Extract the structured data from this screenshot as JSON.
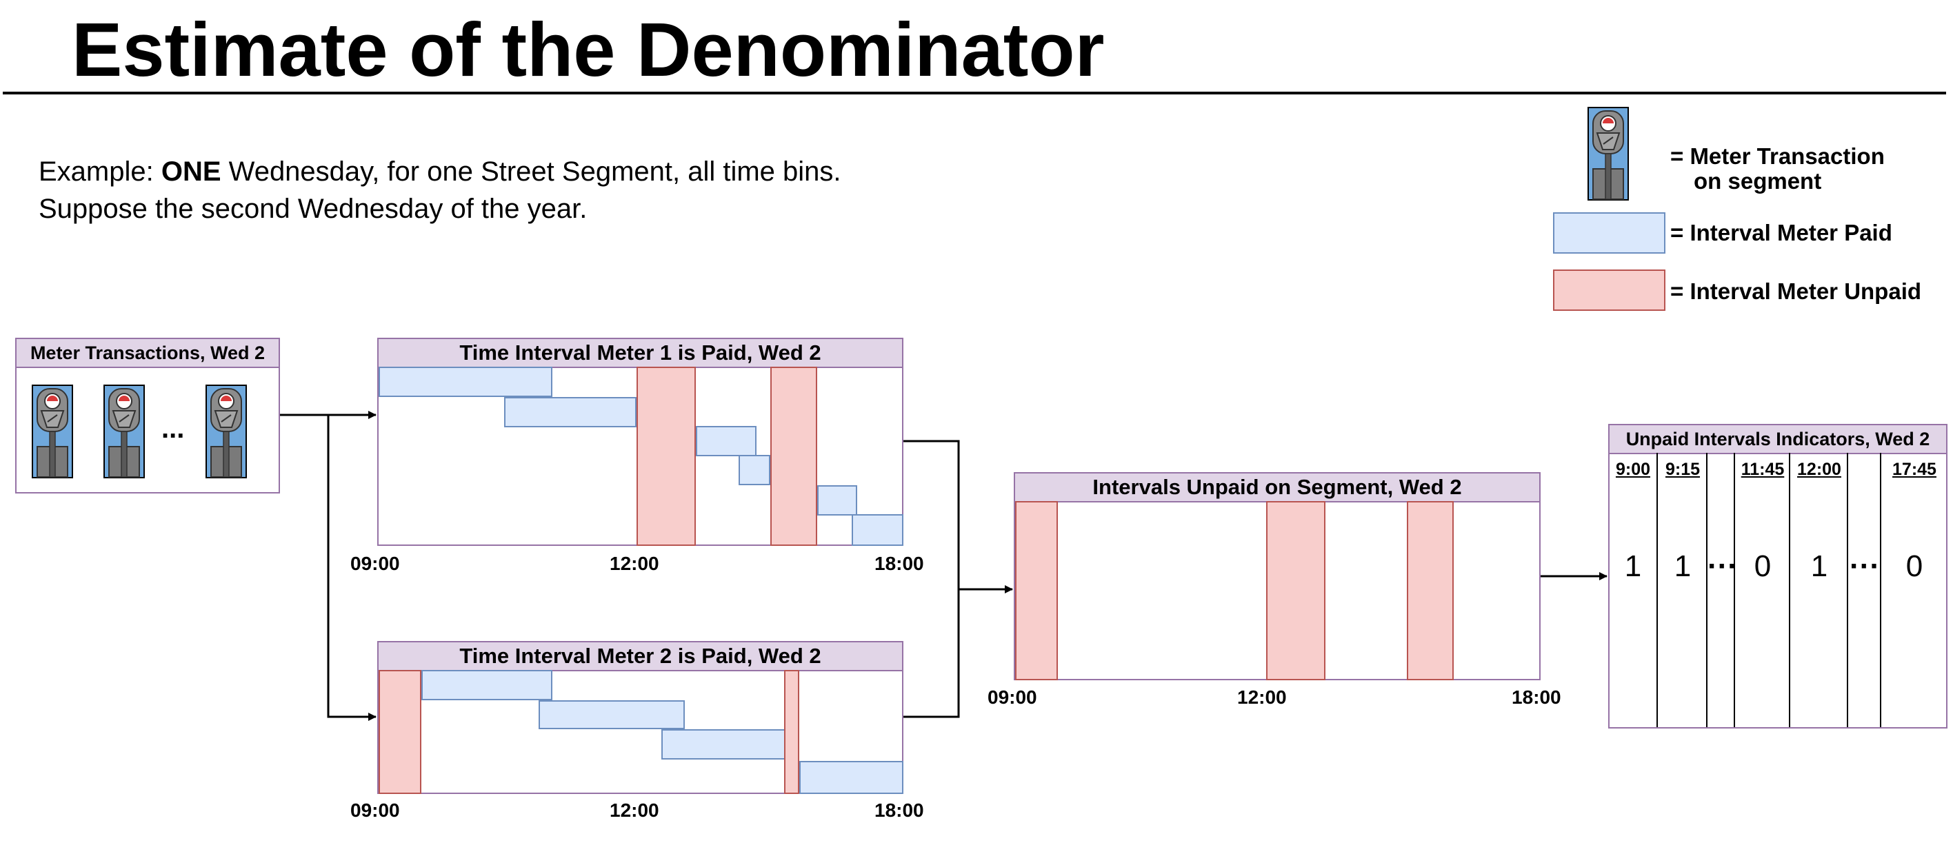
{
  "title": "Estimate of the Denominator",
  "example": {
    "prefix": "Example: ",
    "emphasis": "ONE",
    "line1_rest": " Wednesday, for one Street Segment, all time bins.",
    "line2": "Suppose the second Wednesday of the year."
  },
  "legend": {
    "meter_transaction_line1": "= Meter Transaction",
    "meter_transaction_line2": "on segment",
    "interval_paid": "= Interval Meter Paid",
    "interval_unpaid": "= Interval Meter Unpaid",
    "icons": {
      "meter": "parking-meter-icon"
    }
  },
  "colors": {
    "paid_fill": "#dae8fc",
    "paid_stroke": "#6c8ebf",
    "unpaid_fill": "#f8cecc",
    "unpaid_stroke": "#b85450",
    "header_fill": "#e1d5e7",
    "header_stroke": "#9673a6",
    "meter_bg": "#6fa8dc"
  },
  "transactions_panel": {
    "title": "Meter Transactions, Wed 2",
    "ellipsis": "..."
  },
  "meter1_panel": {
    "title": "Time Interval Meter 1 is Paid, Wed 2",
    "ticks": [
      "09:00",
      "12:00",
      "18:00"
    ]
  },
  "meter2_panel": {
    "title": "Time Interval Meter 2 is Paid, Wed 2",
    "ticks": [
      "09:00",
      "12:00",
      "18:00"
    ]
  },
  "segment_panel": {
    "title": "Intervals Unpaid on Segment, Wed 2",
    "ticks": [
      "09:00",
      "12:00",
      "18:00"
    ]
  },
  "indicators_panel": {
    "title": "Unpaid Intervals Indicators, Wed 2",
    "columns": [
      {
        "header": "9:00",
        "value": "1"
      },
      {
        "header": "9:15",
        "value": "1"
      },
      {
        "header": "",
        "value": "···"
      },
      {
        "header": "11:45",
        "value": "0"
      },
      {
        "header": "12:00",
        "value": "1"
      },
      {
        "header": "",
        "value": "···"
      },
      {
        "header": "17:45",
        "value": "0"
      }
    ]
  }
}
